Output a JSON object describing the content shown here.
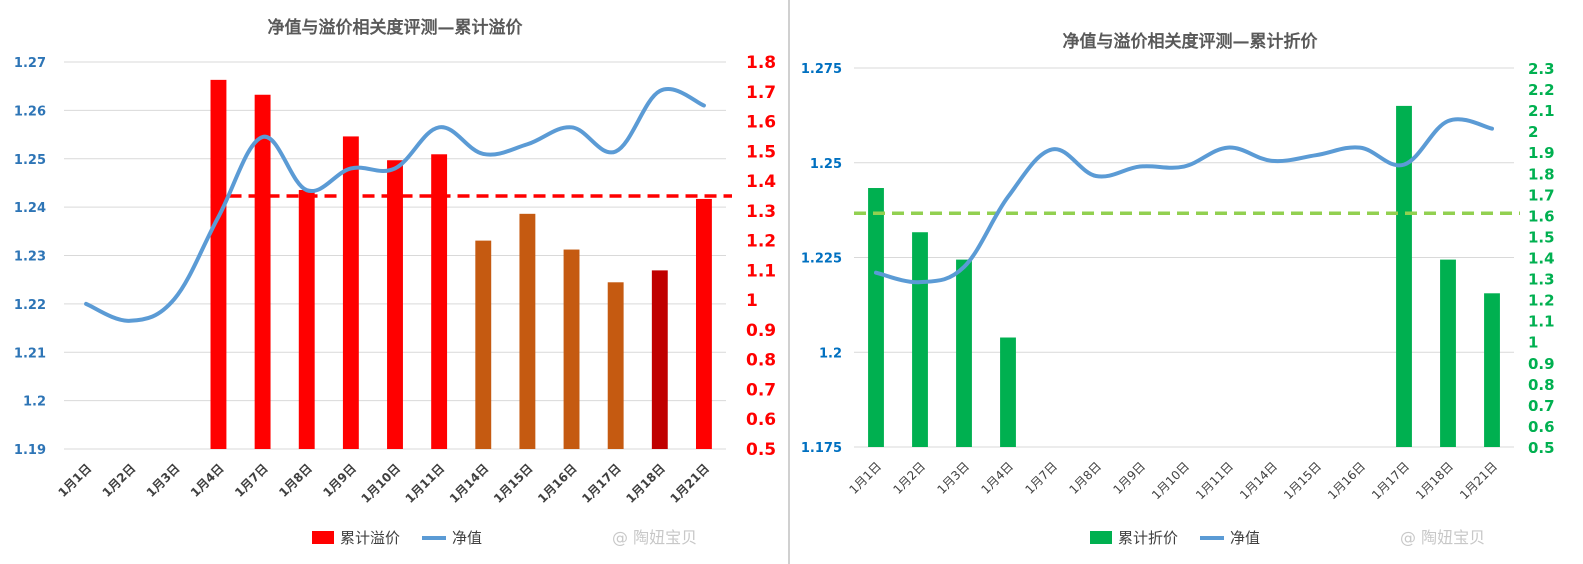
{
  "chart_data": [
    {
      "type": "bar",
      "title": "净值与溢价相关度评测—累计溢价",
      "categories": [
        "1月1日",
        "1月2日",
        "1月3日",
        "1月4日",
        "1月7日",
        "1月8日",
        "1月9日",
        "1月10日",
        "1月11日",
        "1月14日",
        "1月15日",
        "1月16日",
        "1月17日",
        "1月18日",
        "1月21日"
      ],
      "series": [
        {
          "name": "累计溢价",
          "kind": "bar",
          "axis": "right",
          "values": [
            null,
            null,
            null,
            1.74,
            1.69,
            1.37,
            1.55,
            1.47,
            1.49,
            1.2,
            1.29,
            1.17,
            1.06,
            1.1,
            1.34
          ],
          "colors": [
            "#ff0000",
            "#ff0000",
            "#ff0000",
            "#ff0000",
            "#ff0000",
            "#ff0000",
            "#ff0000",
            "#ff0000",
            "#ff0000",
            "#c55a11",
            "#c55a11",
            "#c55a11",
            "#c55a11",
            "#c00000",
            "#ff0000"
          ]
        },
        {
          "name": "净值",
          "kind": "line",
          "axis": "left",
          "values": [
            1.22,
            1.2165,
            1.221,
            1.238,
            1.2545,
            1.2435,
            1.248,
            1.248,
            1.2565,
            1.251,
            1.253,
            1.2565,
            1.2515,
            1.264,
            1.261
          ]
        }
      ],
      "reference_line": {
        "axis": "right",
        "value": 1.35,
        "style": "dashed",
        "color": "#ff0000",
        "from_index": 3
      },
      "y_left": {
        "lim": [
          1.19,
          1.27
        ],
        "ticks": [
          "1.19",
          "1.2",
          "1.21",
          "1.22",
          "1.23",
          "1.24",
          "1.25",
          "1.26",
          "1.27"
        ],
        "color": "#2e75b6"
      },
      "y_right": {
        "lim": [
          0.5,
          1.8
        ],
        "ticks": [
          "0.5",
          "0.6",
          "0.7",
          "0.8",
          "0.9",
          "1",
          "1.1",
          "1.2",
          "1.3",
          "1.4",
          "1.5",
          "1.6",
          "1.7",
          "1.8"
        ],
        "color": "#ff0000"
      },
      "grid": true,
      "legend_position": "bottom",
      "line_color": "#5b9bd5",
      "watermark": "@ 陶妞宝贝"
    },
    {
      "type": "bar",
      "title": "净值与溢价相关度评测—累计折价",
      "categories": [
        "1月1日",
        "1月2日",
        "1月3日",
        "1月4日",
        "1月7日",
        "1月8日",
        "1月9日",
        "1月10日",
        "1月11日",
        "1月14日",
        "1月15日",
        "1月16日",
        "1月17日",
        "1月18日",
        "1月21日"
      ],
      "series": [
        {
          "name": "累计折价",
          "kind": "bar",
          "axis": "right",
          "values": [
            1.73,
            1.52,
            1.39,
            1.02,
            null,
            null,
            null,
            null,
            null,
            null,
            null,
            null,
            2.12,
            1.39,
            1.23
          ],
          "color": "#00b050"
        },
        {
          "name": "净值",
          "kind": "line",
          "axis": "left",
          "values": [
            1.221,
            1.2185,
            1.2225,
            1.241,
            1.2535,
            1.2465,
            1.249,
            1.249,
            1.254,
            1.2505,
            1.252,
            1.254,
            1.2495,
            1.261,
            1.259
          ]
        }
      ],
      "reference_line": {
        "axis": "right",
        "value": 1.61,
        "style": "dashed",
        "color": "#92d050",
        "from_index": 0
      },
      "y_left": {
        "lim": [
          1.175,
          1.275
        ],
        "ticks": [
          "1.175",
          "1.2",
          "1.225",
          "1.25",
          "1.275"
        ],
        "color": "#0070c0"
      },
      "y_right": {
        "lim": [
          0.5,
          2.3
        ],
        "ticks": [
          "0.5",
          "0.6",
          "0.7",
          "0.8",
          "0.9",
          "1",
          "1.1",
          "1.2",
          "1.3",
          "1.4",
          "1.5",
          "1.6",
          "1.7",
          "1.8",
          "1.9",
          "2",
          "2.1",
          "2.2",
          "2.3"
        ],
        "color": "#00b050"
      },
      "grid": true,
      "legend_position": "bottom",
      "line_color": "#5b9bd5",
      "watermark": "@ 陶妞宝贝"
    }
  ]
}
